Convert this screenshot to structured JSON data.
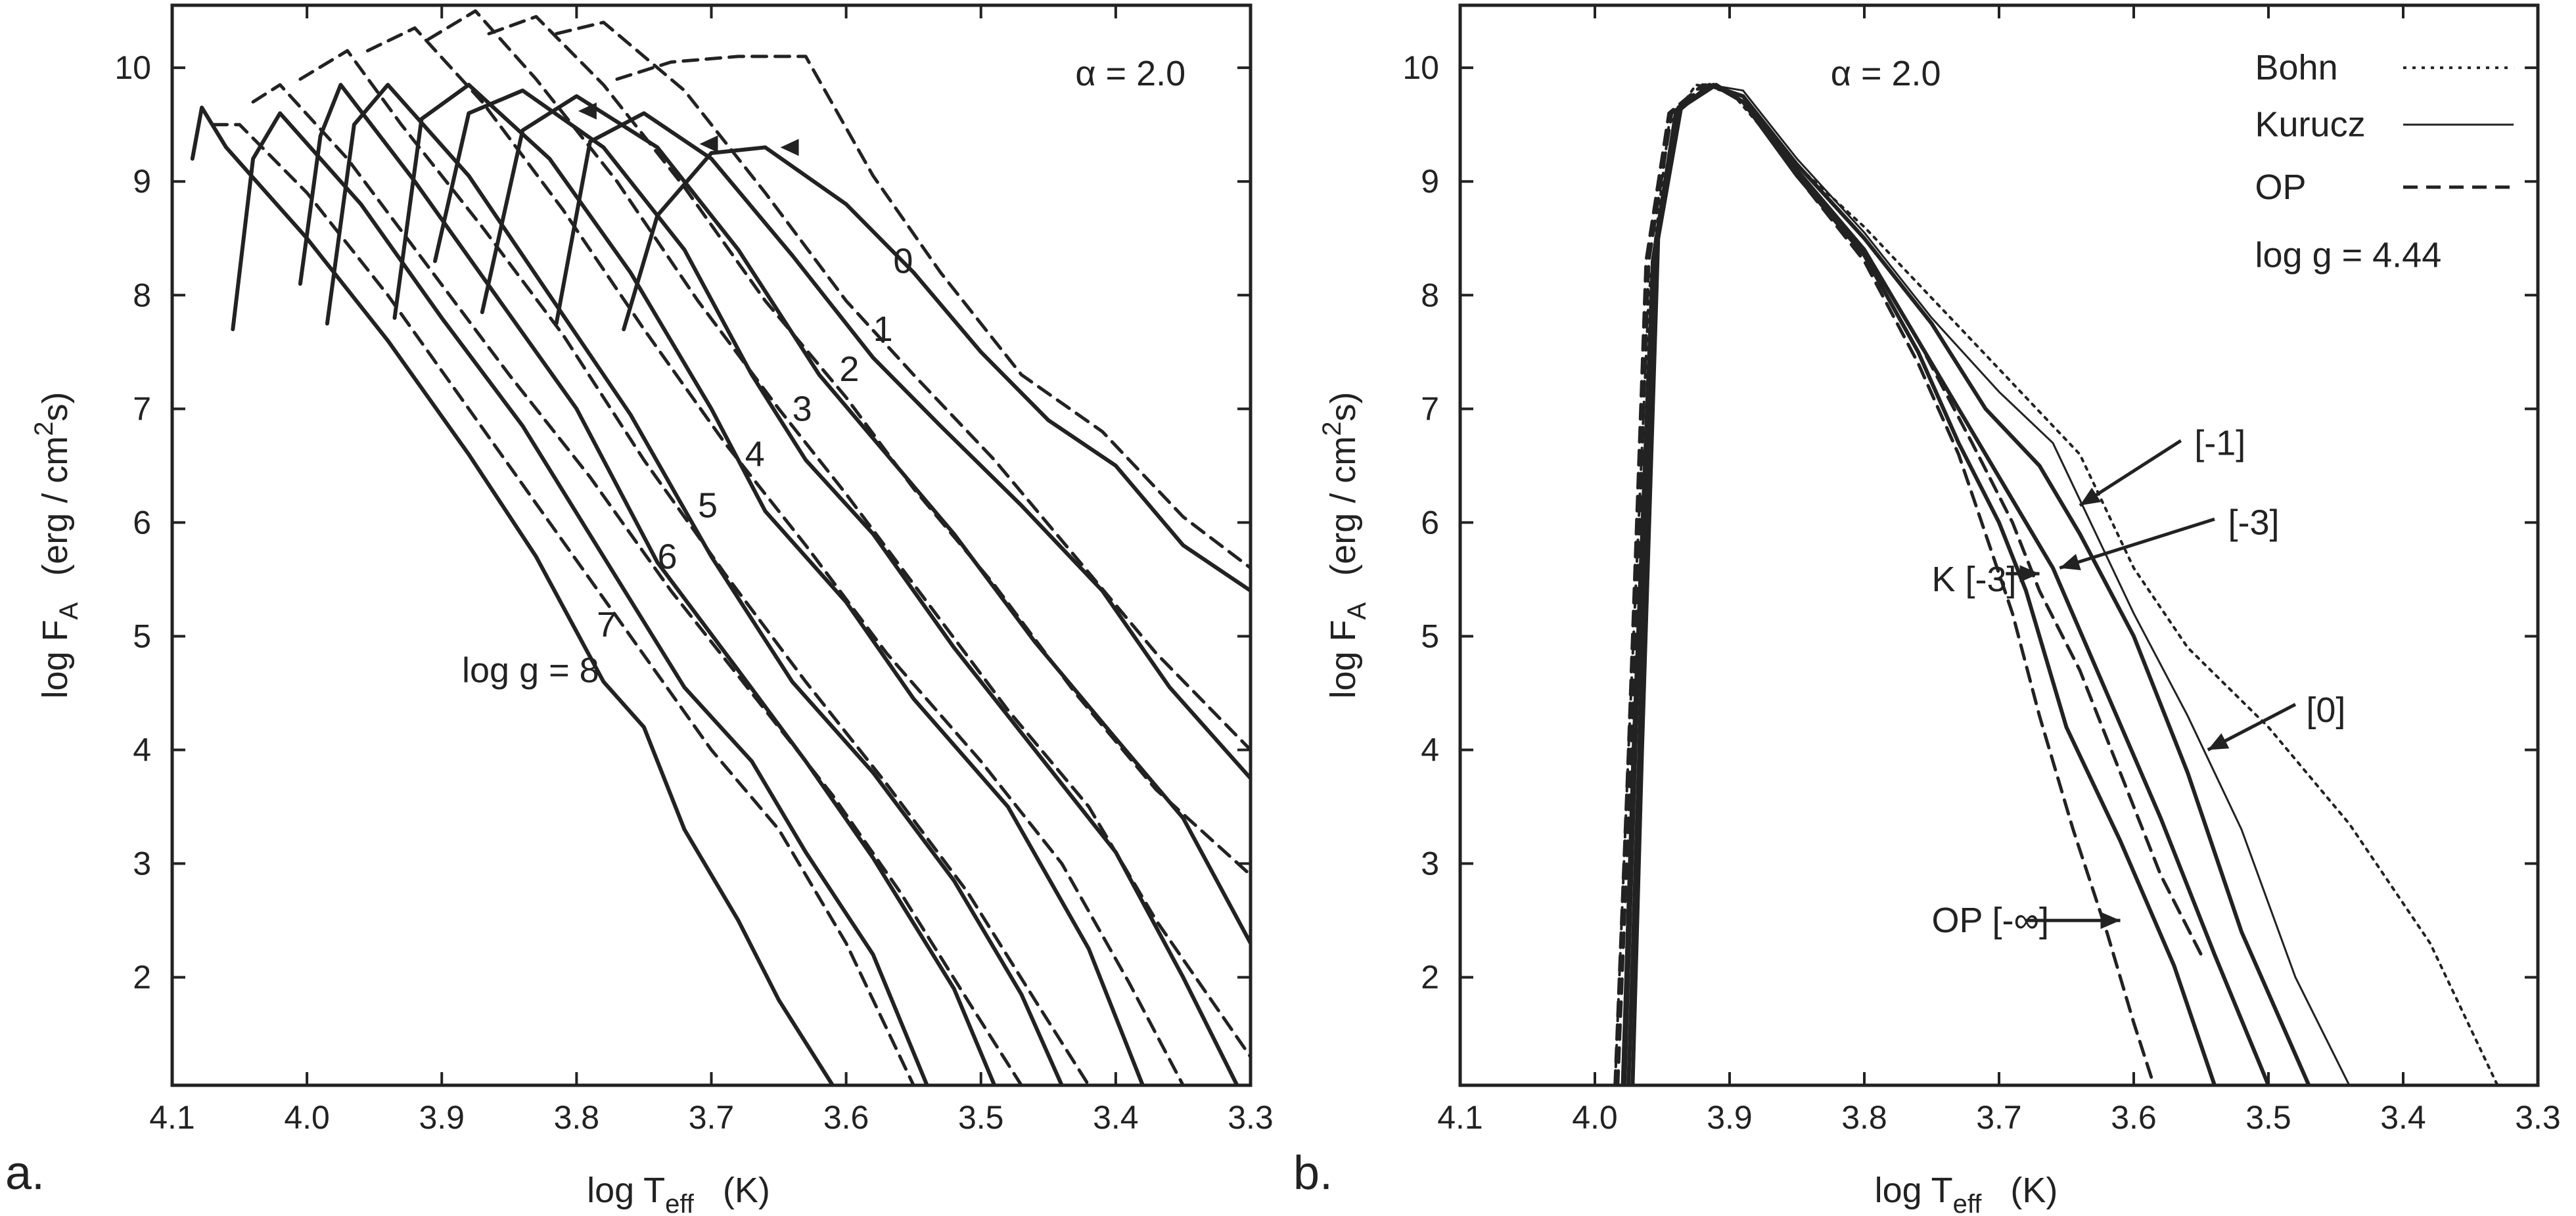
{
  "panels": [
    {
      "panel_label": "a.",
      "xlabel_main": "log  T",
      "xlabel_sub": "eff",
      "xlabel_unit": "(K)",
      "ylabel_main": "log  F",
      "ylabel_sub": "A",
      "ylabel_unit_pre": "(erg / cm",
      "ylabel_unit_sup": "2",
      "ylabel_unit_post": "s)",
      "annotations": [
        {
          "text": "α = 2.0",
          "x": 3.43,
          "y": 9.95
        },
        {
          "text": "0",
          "x": 3.565,
          "y": 8.3
        },
        {
          "text": "1",
          "x": 3.58,
          "y": 7.7
        },
        {
          "text": "2",
          "x": 3.605,
          "y": 7.35
        },
        {
          "text": "3",
          "x": 3.64,
          "y": 7.0
        },
        {
          "text": "4",
          "x": 3.675,
          "y": 6.6
        },
        {
          "text": "5",
          "x": 3.71,
          "y": 6.15
        },
        {
          "text": "6",
          "x": 3.74,
          "y": 5.7
        },
        {
          "text": "7",
          "x": 3.785,
          "y": 5.1
        },
        {
          "text": "log g = 8",
          "x": 3.885,
          "y": 4.7
        }
      ]
    },
    {
      "panel_label": "b.",
      "xlabel_main": "log  T",
      "xlabel_sub": "eff",
      "xlabel_unit": "(K)",
      "ylabel_main": "log  F",
      "ylabel_sub": "A",
      "ylabel_unit_pre": "(erg / cm",
      "ylabel_unit_sup": "2",
      "ylabel_unit_post": "s)",
      "annotations": [
        {
          "text": "α = 2.0",
          "x": 3.825,
          "y": 9.95
        },
        {
          "text": "Bohn",
          "x": 3.51,
          "y": 10.0
        },
        {
          "text": "Kurucz",
          "x": 3.51,
          "y": 9.5
        },
        {
          "text": "OP",
          "x": 3.51,
          "y": 8.95
        },
        {
          "text": "log g = 4.44",
          "x": 3.51,
          "y": 8.35
        },
        {
          "text": "[-1]",
          "x": 3.555,
          "y": 6.7
        },
        {
          "text": "[-3]",
          "x": 3.53,
          "y": 6.0
        },
        {
          "text": "K [-3]",
          "x": 3.75,
          "y": 5.5
        },
        {
          "text": "[0]",
          "x": 3.472,
          "y": 4.35
        },
        {
          "text": "OP [-∞]",
          "x": 3.75,
          "y": 2.5
        }
      ]
    }
  ],
  "chart_data": [
    {
      "type": "line",
      "panel": "a.",
      "title": "",
      "xlabel": "log Teff (K)",
      "ylabel": "log FA (erg / cm2 s)",
      "xlim": [
        4.1,
        3.3
      ],
      "ylim": [
        1.05,
        10.55
      ],
      "x_ticks": [
        "4.1",
        "4.0",
        "3.9",
        "3.8",
        "3.7",
        "3.6",
        "3.5",
        "3.4",
        "3.3"
      ],
      "y_ticks": [
        "2",
        "3",
        "4",
        "5",
        "6",
        "7",
        "8",
        "9",
        "10"
      ],
      "x_tick_values": [
        4.1,
        4.0,
        3.9,
        3.8,
        3.7,
        3.6,
        3.5,
        3.4,
        3.3
      ],
      "y_tick_values": [
        2,
        3,
        4,
        5,
        6,
        7,
        8,
        9,
        10
      ],
      "series": [
        {
          "label_on_chart": "log g = 8",
          "style": "solid",
          "x": [
            4.085,
            4.078,
            4.06,
            4.0,
            3.94,
            3.88,
            3.83,
            3.78,
            3.75,
            3.72,
            3.68,
            3.65,
            3.61
          ],
          "y": [
            9.2,
            9.65,
            9.3,
            8.5,
            7.6,
            6.6,
            5.7,
            4.6,
            4.2,
            3.3,
            2.5,
            1.8,
            1.05
          ]
        },
        {
          "label_on_chart": "7",
          "style": "solid",
          "x": [
            4.055,
            4.04,
            4.02,
            3.96,
            3.9,
            3.84,
            3.78,
            3.72,
            3.67,
            3.63,
            3.58,
            3.54
          ],
          "y": [
            7.7,
            9.2,
            9.6,
            8.8,
            7.8,
            6.85,
            5.7,
            4.55,
            3.9,
            3.1,
            2.2,
            1.05
          ]
        },
        {
          "label_on_chart": "7",
          "style": "dashed",
          "x": [
            4.07,
            4.05,
            4.0,
            3.94,
            3.88,
            3.82,
            3.76,
            3.7,
            3.65,
            3.6,
            3.55
          ],
          "y": [
            9.5,
            9.5,
            8.9,
            8.0,
            7.0,
            6.0,
            5.0,
            4.0,
            3.3,
            2.3,
            1.05
          ]
        },
        {
          "label_on_chart": "6",
          "style": "solid",
          "x": [
            4.005,
            3.99,
            3.975,
            3.92,
            3.86,
            3.8,
            3.74,
            3.68,
            3.63,
            3.58,
            3.52,
            3.49
          ],
          "y": [
            8.1,
            9.4,
            9.85,
            9.0,
            8.0,
            7.0,
            5.65,
            4.7,
            3.9,
            3.05,
            1.9,
            1.05
          ]
        },
        {
          "label_on_chart": "6",
          "style": "dashed",
          "x": [
            4.04,
            4.02,
            3.97,
            3.91,
            3.85,
            3.79,
            3.73,
            3.67,
            3.61,
            3.56,
            3.51,
            3.47
          ],
          "y": [
            9.7,
            9.85,
            9.2,
            8.25,
            7.3,
            6.4,
            5.4,
            4.5,
            3.6,
            2.75,
            1.8,
            1.05
          ]
        },
        {
          "label_on_chart": "5",
          "style": "solid",
          "x": [
            3.985,
            3.965,
            3.94,
            3.88,
            3.82,
            3.76,
            3.7,
            3.64,
            3.58,
            3.52,
            3.47,
            3.44
          ],
          "y": [
            7.75,
            9.5,
            9.85,
            9.05,
            8.0,
            6.95,
            5.7,
            4.6,
            3.8,
            2.85,
            1.85,
            1.05
          ]
        },
        {
          "label_on_chart": "5",
          "style": "dashed",
          "x": [
            4.005,
            3.97,
            3.93,
            3.87,
            3.81,
            3.75,
            3.69,
            3.63,
            3.57,
            3.51,
            3.46,
            3.42
          ],
          "y": [
            9.9,
            10.15,
            9.5,
            8.6,
            7.65,
            6.55,
            5.55,
            4.6,
            3.7,
            2.75,
            1.8,
            1.05
          ]
        },
        {
          "label_on_chart": "4",
          "style": "solid",
          "x": [
            3.935,
            3.915,
            3.88,
            3.82,
            3.76,
            3.7,
            3.66,
            3.6,
            3.55,
            3.48,
            3.42,
            3.38
          ],
          "y": [
            7.8,
            9.55,
            9.85,
            9.2,
            8.2,
            7.0,
            6.1,
            5.3,
            4.45,
            3.5,
            2.25,
            1.05
          ]
        },
        {
          "label_on_chart": "4",
          "style": "dashed",
          "x": [
            3.955,
            3.92,
            3.87,
            3.81,
            3.75,
            3.69,
            3.63,
            3.57,
            3.5,
            3.44,
            3.39,
            3.35
          ],
          "y": [
            10.15,
            10.35,
            9.7,
            8.75,
            7.7,
            6.7,
            5.8,
            4.85,
            3.9,
            3.0,
            1.95,
            1.05
          ]
        },
        {
          "label_on_chart": "3",
          "style": "solid",
          "x": [
            3.905,
            3.88,
            3.84,
            3.78,
            3.72,
            3.67,
            3.63,
            3.58,
            3.52,
            3.46,
            3.4,
            3.35,
            3.31
          ],
          "y": [
            8.3,
            9.6,
            9.8,
            9.3,
            8.4,
            7.3,
            6.55,
            5.9,
            4.9,
            4.0,
            3.1,
            2.0,
            1.05
          ]
        },
        {
          "label_on_chart": "3",
          "style": "dashed",
          "x": [
            3.91,
            3.875,
            3.83,
            3.77,
            3.71,
            3.65,
            3.6,
            3.54,
            3.48,
            3.42,
            3.37,
            3.3
          ],
          "y": [
            10.25,
            10.5,
            9.9,
            9.0,
            7.95,
            7.0,
            6.25,
            5.3,
            4.35,
            3.5,
            2.5,
            1.3
          ]
        },
        {
          "label_on_chart": "2",
          "style": "solid",
          "x": [
            3.87,
            3.84,
            3.8,
            3.74,
            3.68,
            3.62,
            3.57,
            3.52,
            3.46,
            3.4,
            3.35,
            3.3
          ],
          "y": [
            7.85,
            9.45,
            9.75,
            9.3,
            8.4,
            7.3,
            6.6,
            5.9,
            4.95,
            4.1,
            3.4,
            2.3
          ]
        },
        {
          "label_on_chart": "2",
          "style": "dashed",
          "x": [
            3.865,
            3.83,
            3.78,
            3.72,
            3.66,
            3.6,
            3.55,
            3.49,
            3.43,
            3.37,
            3.3
          ],
          "y": [
            10.3,
            10.45,
            9.85,
            8.95,
            7.95,
            7.1,
            6.3,
            5.45,
            4.5,
            3.65,
            2.9
          ]
        },
        {
          "label_on_chart": "1",
          "style": "solid",
          "x": [
            3.815,
            3.79,
            3.75,
            3.7,
            3.64,
            3.58,
            3.53,
            3.47,
            3.41,
            3.36,
            3.3
          ],
          "y": [
            7.75,
            9.35,
            9.6,
            9.2,
            8.35,
            7.45,
            6.85,
            6.15,
            5.4,
            4.55,
            3.75
          ]
        },
        {
          "label_on_chart": "1",
          "style": "dashed",
          "x": [
            3.815,
            3.78,
            3.72,
            3.66,
            3.6,
            3.55,
            3.49,
            3.43,
            3.37,
            3.3
          ],
          "y": [
            10.3,
            10.4,
            9.8,
            8.9,
            7.95,
            7.3,
            6.55,
            5.7,
            4.85,
            4.0
          ]
        },
        {
          "label_on_chart": "0",
          "style": "solid",
          "x": [
            3.765,
            3.74,
            3.7,
            3.66,
            3.6,
            3.55,
            3.5,
            3.45,
            3.4,
            3.35,
            3.3
          ],
          "y": [
            7.7,
            8.7,
            9.25,
            9.3,
            8.8,
            8.2,
            7.5,
            6.9,
            6.5,
            5.8,
            5.4
          ]
        },
        {
          "label_on_chart": "0",
          "style": "dashed",
          "x": [
            3.77,
            3.73,
            3.68,
            3.63,
            3.58,
            3.53,
            3.47,
            3.41,
            3.35,
            3.3
          ],
          "y": [
            9.9,
            10.05,
            10.1,
            10.1,
            9.05,
            8.2,
            7.3,
            6.8,
            6.05,
            5.6
          ]
        }
      ]
    },
    {
      "type": "line",
      "panel": "b.",
      "title": "",
      "xlabel": "log Teff (K)",
      "ylabel": "log FA (erg / cm2 s)",
      "xlim": [
        4.1,
        3.3
      ],
      "ylim": [
        1.05,
        10.55
      ],
      "x_ticks": [
        "4.1",
        "4.0",
        "3.9",
        "3.8",
        "3.7",
        "3.6",
        "3.5",
        "3.4",
        "3.3"
      ],
      "y_ticks": [
        "2",
        "3",
        "4",
        "5",
        "6",
        "7",
        "8",
        "9",
        "10"
      ],
      "x_tick_values": [
        4.1,
        4.0,
        3.9,
        3.8,
        3.7,
        3.6,
        3.5,
        3.4,
        3.3
      ],
      "y_tick_values": [
        2,
        3,
        4,
        5,
        6,
        7,
        8,
        9,
        10
      ],
      "legend": [
        {
          "name": "Bohn",
          "style": "dotted"
        },
        {
          "name": "Kurucz",
          "style": "thin"
        },
        {
          "name": "OP",
          "style": "dashed"
        }
      ],
      "series": [
        {
          "label_on_chart": "[0]",
          "legend": "Bohn",
          "style": "dotted",
          "x": [
            3.985,
            3.975,
            3.96,
            3.945,
            3.925,
            3.9,
            3.86,
            3.8,
            3.74,
            3.68,
            3.64,
            3.6,
            3.56,
            3.5,
            3.44,
            3.38,
            3.33
          ],
          "y": [
            1.05,
            4.0,
            8.0,
            9.5,
            9.85,
            9.8,
            9.25,
            8.6,
            7.85,
            7.1,
            6.6,
            5.6,
            4.9,
            4.2,
            3.35,
            2.3,
            1.05
          ]
        },
        {
          "label_on_chart": "[0]",
          "legend": "Kurucz",
          "style": "thin",
          "x": [
            3.98,
            3.972,
            3.958,
            3.94,
            3.915,
            3.89,
            3.85,
            3.8,
            3.75,
            3.7,
            3.66,
            3.64,
            3.6,
            3.56,
            3.52,
            3.48,
            3.44
          ],
          "y": [
            1.05,
            4.0,
            8.2,
            9.6,
            9.85,
            9.8,
            9.2,
            8.55,
            7.8,
            7.15,
            6.7,
            6.2,
            5.2,
            4.3,
            3.3,
            2.0,
            1.05
          ]
        },
        {
          "label_on_chart": "[-1]",
          "style": "solid",
          "x": [
            3.978,
            3.97,
            3.957,
            3.94,
            3.915,
            3.89,
            3.85,
            3.8,
            3.75,
            3.71,
            3.67,
            3.64,
            3.6,
            3.56,
            3.52,
            3.47
          ],
          "y": [
            1.05,
            4.0,
            8.3,
            9.6,
            9.85,
            9.75,
            9.15,
            8.5,
            7.75,
            7.0,
            6.5,
            5.9,
            5.0,
            3.8,
            2.4,
            1.05
          ]
        },
        {
          "label_on_chart": "[-3]",
          "style": "solid",
          "x": [
            3.975,
            3.967,
            3.955,
            3.938,
            3.912,
            3.89,
            3.85,
            3.8,
            3.76,
            3.72,
            3.69,
            3.66,
            3.62,
            3.58,
            3.54,
            3.5
          ],
          "y": [
            1.05,
            4.0,
            8.4,
            9.65,
            9.85,
            9.7,
            9.1,
            8.4,
            7.6,
            6.8,
            6.2,
            5.6,
            4.5,
            3.4,
            2.2,
            1.05
          ]
        },
        {
          "label_on_chart": "K [-3]",
          "style": "solid",
          "x": [
            3.972,
            3.965,
            3.953,
            3.936,
            3.91,
            3.89,
            3.85,
            3.8,
            3.76,
            3.73,
            3.7,
            3.68,
            3.65,
            3.61,
            3.57,
            3.54
          ],
          "y": [
            1.05,
            4.0,
            8.5,
            9.65,
            9.85,
            9.7,
            9.05,
            8.35,
            7.5,
            6.7,
            6.0,
            5.4,
            4.2,
            3.2,
            2.1,
            1.05
          ]
        },
        {
          "label_on_chart": "[-3]",
          "legend": "OP",
          "style": "dashed",
          "x": [
            3.985,
            3.975,
            3.962,
            3.945,
            3.92,
            3.89,
            3.85,
            3.8,
            3.76,
            3.72,
            3.69,
            3.67,
            3.64,
            3.61,
            3.58,
            3.55
          ],
          "y": [
            1.05,
            4.0,
            8.3,
            9.6,
            9.85,
            9.75,
            9.1,
            8.4,
            7.6,
            6.7,
            6.0,
            5.4,
            4.7,
            3.8,
            2.9,
            2.2
          ]
        },
        {
          "label_on_chart": "OP [-∞]",
          "legend": "OP",
          "style": "dashed",
          "x": [
            3.983,
            3.973,
            3.96,
            3.943,
            3.918,
            3.89,
            3.85,
            3.8,
            3.76,
            3.73,
            3.71,
            3.69,
            3.67,
            3.645,
            3.62,
            3.6,
            3.585
          ],
          "y": [
            1.05,
            4.0,
            8.3,
            9.6,
            9.85,
            9.75,
            9.05,
            8.3,
            7.4,
            6.6,
            5.9,
            5.2,
            4.3,
            3.3,
            2.4,
            1.6,
            1.05
          ]
        }
      ]
    }
  ]
}
